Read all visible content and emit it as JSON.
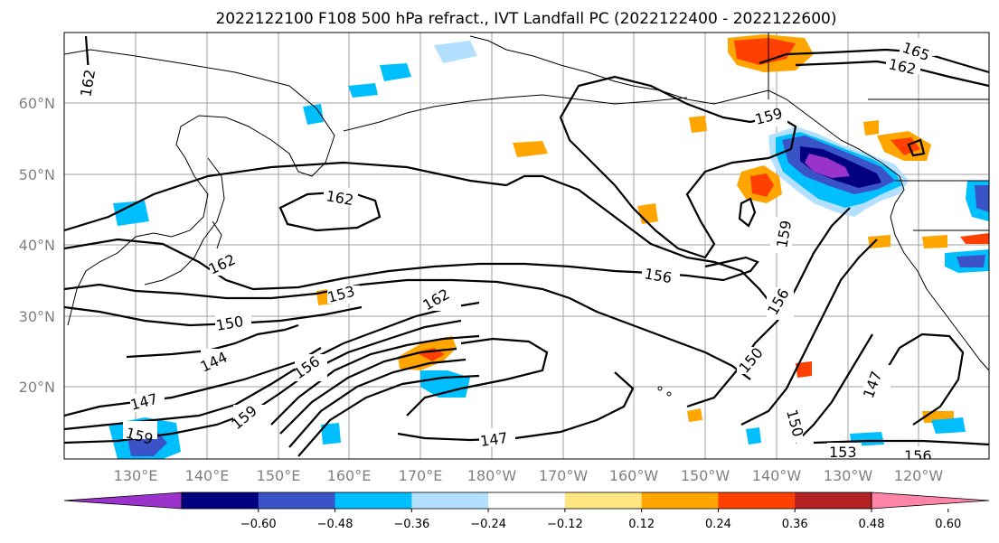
{
  "title": "2022122100 F108 500 hPa refract., IVT Landfall PC (2022122400 - 2022122600)",
  "lat_labels": [
    "60°N",
    "50°N",
    "40°N",
    "30°N",
    "20°N"
  ],
  "lon_labels": [
    "130°E",
    "140°E",
    "150°E",
    "160°E",
    "170°E",
    "180°W",
    "170°W",
    "160°W",
    "150°W",
    "140°W",
    "130°W",
    "120°W"
  ],
  "contour_labels": {
    "c162_topleft": "162",
    "c165": "165",
    "c162_topright": "162",
    "c159_north": "159",
    "c162_mid": "162",
    "c162_west": "162",
    "c153": "153",
    "c162_jet": "162",
    "c156_east": "156",
    "c159_east": "159",
    "c156_se": "156",
    "c150_west": "150",
    "c144": "144",
    "c156_jet": "156",
    "c150_se": "150",
    "c147_w": "147",
    "c159_sw": "159",
    "c159_s": "159",
    "c147_s": "147",
    "c150_s": "150",
    "c147_e": "147",
    "c153_s": "153",
    "c156_s": "156"
  },
  "colorbar": {
    "ticks": [
      "−0.60",
      "−0.48",
      "−0.36",
      "−0.24",
      "−0.12",
      "0.12",
      "0.24",
      "0.36",
      "0.48",
      "0.60"
    ],
    "colors": [
      "#9933cc",
      "#000080",
      "#3a54c8",
      "#00bfff",
      "#b3e0ff",
      "#ffffff",
      "#ffe680",
      "#ffa500",
      "#ff4000",
      "#b22222",
      "#ff85a8"
    ]
  }
}
